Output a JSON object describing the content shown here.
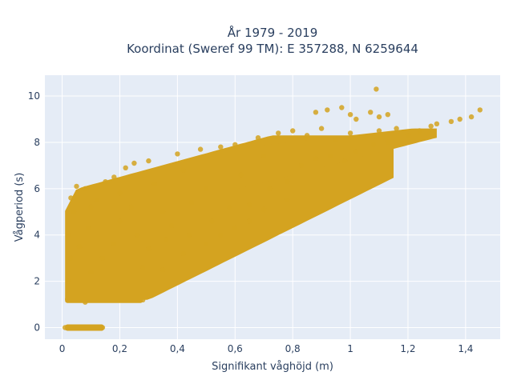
{
  "chart_data": {
    "type": "scatter",
    "title_line1": "År 1979 - 2019",
    "title_line2": "Koordinat (Sweref 99 TM): E 357288, N 6259644",
    "xlabel": "Signifikant våghöjd (m)",
    "ylabel": "Vågperiod (s)",
    "xlim": [
      -0.06,
      1.52
    ],
    "ylim": [
      -0.5,
      10.9
    ],
    "x_ticks": [
      0,
      0.2,
      0.4,
      0.6,
      0.8,
      1,
      1.2,
      1.4
    ],
    "x_tick_labels": [
      "0",
      "0,2",
      "0,4",
      "0,6",
      "0,8",
      "1",
      "1,2",
      "1,4"
    ],
    "y_ticks": [
      0,
      2,
      4,
      6,
      8,
      10
    ],
    "y_tick_labels": [
      "0",
      "2",
      "4",
      "6",
      "8",
      "10"
    ],
    "grid": true,
    "legend": "none",
    "colors": {
      "marker": "#d4a320",
      "plot_bg": "#e5ecf6",
      "grid": "#ffffff",
      "text": "#2a3f5f"
    },
    "points": [
      [
        0.01,
        0
      ],
      [
        0.03,
        0
      ],
      [
        0.05,
        0
      ],
      [
        0.07,
        0
      ],
      [
        0.09,
        0
      ],
      [
        0.11,
        0
      ],
      [
        0.13,
        0
      ],
      [
        0.14,
        0
      ],
      [
        0.02,
        1.2
      ],
      [
        0.05,
        1.2
      ],
      [
        0.08,
        1.1
      ],
      [
        0.12,
        1.2
      ],
      [
        0.16,
        1.2
      ],
      [
        0.2,
        1.2
      ],
      [
        0.24,
        1.2
      ],
      [
        0.28,
        1.2
      ],
      [
        0.02,
        2.0
      ],
      [
        0.03,
        3.0
      ],
      [
        0.02,
        4.0
      ],
      [
        0.04,
        5.0
      ],
      [
        0.03,
        5.6
      ],
      [
        0.05,
        6.1
      ],
      [
        0.08,
        6.0
      ],
      [
        0.1,
        5.2
      ],
      [
        0.06,
        3.5
      ],
      [
        0.09,
        4.3
      ],
      [
        0.12,
        5.5
      ],
      [
        0.15,
        6.3
      ],
      [
        0.18,
        6.5
      ],
      [
        0.2,
        5.8
      ],
      [
        0.22,
        6.9
      ],
      [
        0.25,
        7.1
      ],
      [
        0.1,
        2.4
      ],
      [
        0.14,
        3.0
      ],
      [
        0.18,
        3.6
      ],
      [
        0.2,
        4.6
      ],
      [
        0.24,
        5.2
      ],
      [
        0.26,
        4.0
      ],
      [
        0.3,
        3.4
      ],
      [
        0.28,
        2.6
      ],
      [
        0.3,
        7.2
      ],
      [
        0.32,
        6.2
      ],
      [
        0.35,
        5.0
      ],
      [
        0.36,
        3.8
      ],
      [
        0.38,
        4.4
      ],
      [
        0.4,
        7.5
      ],
      [
        0.42,
        6.8
      ],
      [
        0.45,
        5.4
      ],
      [
        0.44,
        4.0
      ],
      [
        0.48,
        7.7
      ],
      [
        0.5,
        6.0
      ],
      [
        0.52,
        4.6
      ],
      [
        0.55,
        7.8
      ],
      [
        0.58,
        5.2
      ],
      [
        0.6,
        7.9
      ],
      [
        0.62,
        6.6
      ],
      [
        0.65,
        5.3
      ],
      [
        0.68,
        8.2
      ],
      [
        0.7,
        7.4
      ],
      [
        0.72,
        6.0
      ],
      [
        0.75,
        8.4
      ],
      [
        0.78,
        6.3
      ],
      [
        0.8,
        8.5
      ],
      [
        0.83,
        7.0
      ],
      [
        0.85,
        8.3
      ],
      [
        0.88,
        7.3
      ],
      [
        0.9,
        8.6
      ],
      [
        0.93,
        7.4
      ],
      [
        0.95,
        8.1
      ],
      [
        0.98,
        7.2
      ],
      [
        1.0,
        8.4
      ],
      [
        1.02,
        7.6
      ],
      [
        1.05,
        8.2
      ],
      [
        1.08,
        7.9
      ],
      [
        1.1,
        8.5
      ],
      [
        1.13,
        8.0
      ],
      [
        1.16,
        8.6
      ],
      [
        1.2,
        8.3
      ],
      [
        1.24,
        8.5
      ],
      [
        1.28,
        8.7
      ],
      [
        1.3,
        8.8
      ],
      [
        1.35,
        8.9
      ],
      [
        1.38,
        9.0
      ],
      [
        1.42,
        9.1
      ],
      [
        1.45,
        9.4
      ],
      [
        0.88,
        9.3
      ],
      [
        0.92,
        9.4
      ],
      [
        0.97,
        9.5
      ],
      [
        1.0,
        9.2
      ],
      [
        1.02,
        9.0
      ],
      [
        1.07,
        9.3
      ],
      [
        1.1,
        9.1
      ],
      [
        1.13,
        9.2
      ],
      [
        1.09,
        10.3
      ],
      [
        0.35,
        2.5
      ],
      [
        0.42,
        3.2
      ],
      [
        0.5,
        3.6
      ],
      [
        0.55,
        4.0
      ],
      [
        0.6,
        4.3
      ],
      [
        0.65,
        4.6
      ],
      [
        0.7,
        5.1
      ],
      [
        0.78,
        5.5
      ]
    ]
  }
}
